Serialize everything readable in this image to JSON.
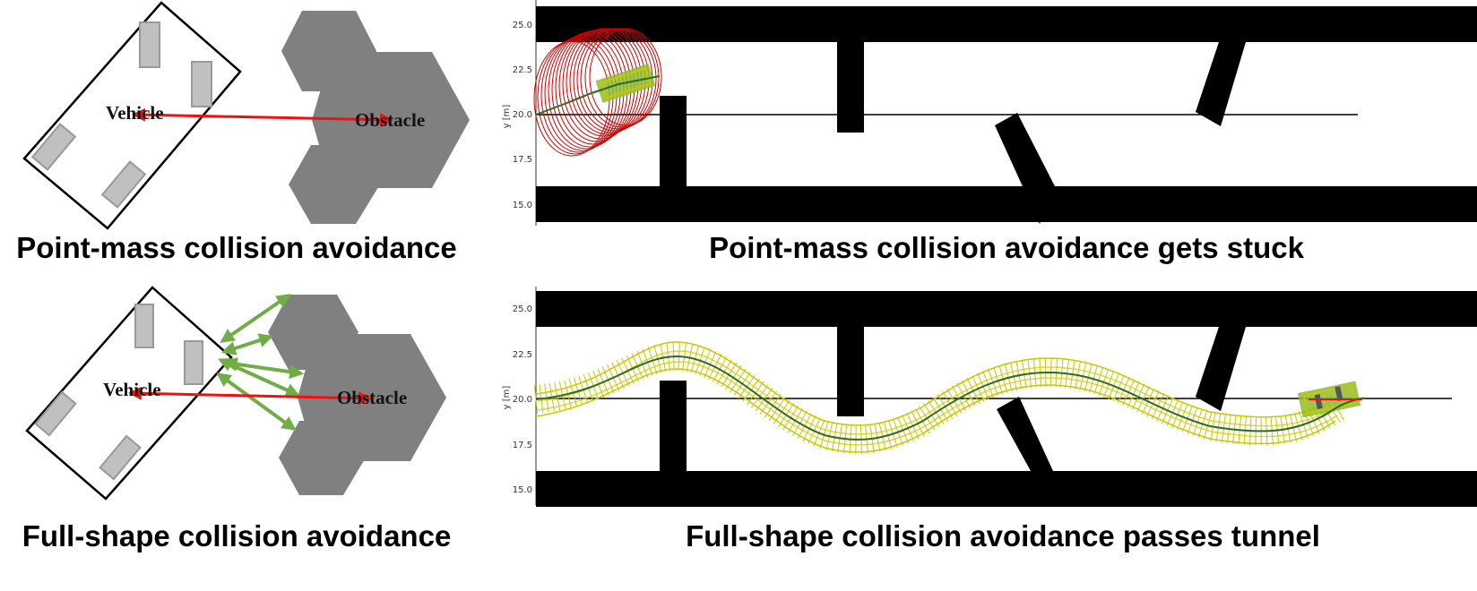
{
  "diagrams": {
    "top_left": {
      "caption": "Point-mass collision avoidance",
      "vehicle_label": "Vehicle",
      "obstacle_label": "Obstacle"
    },
    "bottom_left": {
      "caption": "Full-shape collision avoidance",
      "vehicle_label": "Vehicle",
      "obstacle_label": "Obstacle"
    }
  },
  "plots": {
    "top_right": {
      "caption": "Point-mass collision avoidance gets stuck",
      "ylabel": "y [m]"
    },
    "bottom_right": {
      "caption": "Full-shape collision avoidance passes tunnel",
      "ylabel": "y [m]"
    }
  },
  "y_ticks": [
    "25.0",
    "22.5",
    "20.0",
    "17.5",
    "15.0"
  ],
  "colors": {
    "obstacle_gray": "#808080",
    "wheel_gray": "#c0c0c0",
    "red_arrow": "#ee1111",
    "green_arrow": "#70ad47",
    "circle_red": "#cc0000",
    "footprint_yellow": "#c8c800",
    "path_green": "#2e6b1f",
    "wall_black": "#000000"
  }
}
